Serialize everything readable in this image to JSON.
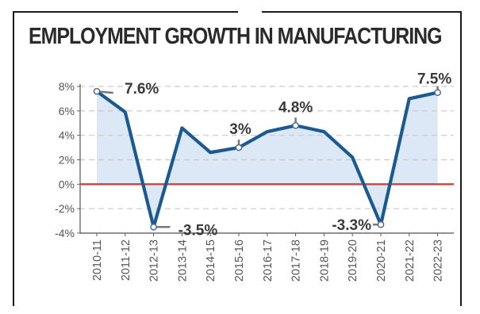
{
  "chart_data": {
    "type": "line",
    "title": "EMPLOYMENT GROWTH IN MANUFACTURING",
    "xlabel": "",
    "ylabel": "",
    "categories": [
      "2010-11",
      "2011-12",
      "2012-13",
      "2013-14",
      "2014-15",
      "2015-16",
      "2016-17",
      "2017-18",
      "2018-19",
      "2019-20",
      "2020-21",
      "2021-22",
      "2022-23"
    ],
    "series": [
      {
        "values": [
          7.6,
          5.9,
          -3.5,
          4.6,
          2.6,
          3.0,
          4.3,
          4.8,
          4.3,
          2.2,
          -3.3,
          7.0,
          7.5
        ]
      }
    ],
    "ylim": [
      -4,
      8
    ],
    "yticks": [
      8,
      6,
      4,
      2,
      0,
      -2,
      -4
    ],
    "ytick_labels": [
      "8%",
      "6%",
      "4%",
      "2%",
      "0%",
      "-2%",
      "-4%"
    ],
    "annotations": [
      {
        "index": 0,
        "label": "7.6%"
      },
      {
        "index": 2,
        "label": "-3.5%"
      },
      {
        "index": 5,
        "label": "3%"
      },
      {
        "index": 7,
        "label": "4.8%"
      },
      {
        "index": 10,
        "label": "-3.3%"
      },
      {
        "index": 12,
        "label": "7.5%"
      }
    ],
    "grid": true,
    "colors": {
      "line": "#1a5a91",
      "fill": "#dde8f6",
      "zero_line": "#c8453b",
      "grid": "#c9c9c9",
      "text": "#3a3a3a"
    }
  }
}
